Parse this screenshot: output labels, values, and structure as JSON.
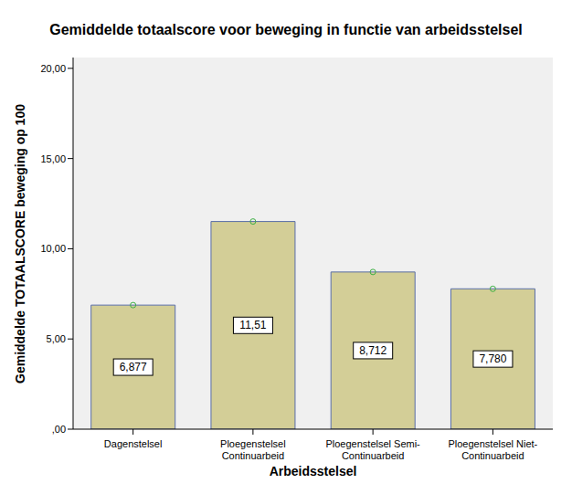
{
  "chart_data": {
    "type": "bar",
    "title": "Gemiddelde totaalscore voor beweging in functie van arbeidsstelsel",
    "x_label": "Arbeidsstelsel",
    "y_label": "Gemiddelde TOTAALSCORE beweging op 100",
    "categories": [
      "Dagenstelsel",
      "Ploegenstelsel Continuarbeid",
      "Ploegenstelsel Semi-Continuarbeid",
      "Ploegenstelsel Niet-Continuarbeid"
    ],
    "values": [
      6.877,
      11.51,
      8.712,
      7.78
    ],
    "value_labels": [
      "6,877",
      "11,51",
      "8,712",
      "7,780"
    ],
    "color": "#d3ce97",
    "marker": "circle",
    "data_labels": true,
    "grid": false,
    "ylim": [
      0,
      20.6
    ],
    "yticks": [
      {
        "value": 0,
        "label": ",00"
      },
      {
        "value": 5,
        "label": "5,00"
      },
      {
        "value": 10,
        "label": "10,00"
      },
      {
        "value": 15,
        "label": "15,00"
      },
      {
        "value": 20,
        "label": "20,00"
      }
    ]
  }
}
